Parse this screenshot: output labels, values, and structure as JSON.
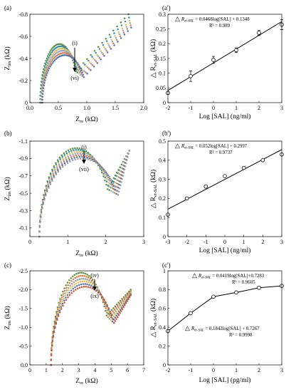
{
  "chart_data": [
    {
      "type": "scatter",
      "panel_label": "(a)",
      "xlabel_main": "Z",
      "xlabel_sub": "re",
      "xlabel_unit": " (kΩ)",
      "ylabel_main": "Z",
      "ylabel_sub": "im",
      "ylabel_unit": " (kΩ)",
      "xlim": [
        0,
        2.0
      ],
      "ylim": [
        0,
        -0.8
      ],
      "xticks": [
        "0.0",
        "0.5",
        "1.0",
        "1.5",
        "2.0"
      ],
      "yticks": [
        "0",
        "-0.2",
        "-0.4",
        "-0.6",
        "-0.8"
      ],
      "arrow_start": "(i)",
      "arrow_end": "(vi)",
      "colors": [
        "#5a8f3c",
        "#2e8fb0",
        "#e8c046",
        "#8aa7d4",
        "#e07b39",
        "#4a72b8"
      ],
      "series": [
        {
          "x0": 0.18,
          "rc": 0.86,
          "peak": -0.53,
          "tailx": 1.73,
          "taily": -0.8
        },
        {
          "x0": 0.19,
          "rc": 0.89,
          "peak": -0.51,
          "tailx": 1.74,
          "taily": -0.77
        },
        {
          "x0": 0.2,
          "rc": 0.92,
          "peak": -0.49,
          "tailx": 1.75,
          "taily": -0.74
        },
        {
          "x0": 0.2,
          "rc": 0.95,
          "peak": -0.47,
          "tailx": 1.76,
          "taily": -0.72
        },
        {
          "x0": 0.21,
          "rc": 0.98,
          "peak": -0.45,
          "tailx": 1.77,
          "taily": -0.7
        },
        {
          "x0": 0.22,
          "rc": 1.01,
          "peak": -0.43,
          "tailx": 1.78,
          "taily": -0.68
        }
      ]
    },
    {
      "type": "line",
      "panel_label": "(a')",
      "xlabel": "Log [SAL] (ng/ml)",
      "ylabel_main": "△ R",
      "ylabel_sub": "et-SAL",
      "ylabel_unit": " (kΩ)",
      "xlim": [
        -2,
        3
      ],
      "ylim": [
        0,
        0.3
      ],
      "xticks": [
        "-2",
        "-1",
        "0",
        "1",
        "2",
        "3"
      ],
      "yticks": [
        "0",
        "0.05",
        "0.1",
        "0.15",
        "0.2",
        "0.25",
        "0.3"
      ],
      "x": [
        -2,
        -1,
        0,
        1,
        2,
        3
      ],
      "y": [
        0.033,
        0.09,
        0.145,
        0.178,
        0.237,
        0.265
      ],
      "err": [
        0.005,
        0.018,
        0.012,
        0.008,
        0.008,
        0.017
      ],
      "fit": {
        "slope": 0.0468,
        "intercept": 0.1348
      },
      "equation_delta": "△",
      "equation_r": "R",
      "equation_sub": "et-SAL",
      "equation_rest": " = 0.0468log[SAL] + 0.1348",
      "r2": "R² = 0.989"
    },
    {
      "type": "scatter",
      "panel_label": "(b)",
      "xlabel_main": "Z",
      "xlabel_sub": "re",
      "xlabel_unit": " (kΩ)",
      "ylabel_main": "Z",
      "ylabel_sub": "im",
      "ylabel_unit": " (kΩ)",
      "xlim": [
        0,
        3
      ],
      "ylim": [
        0,
        -1.1
      ],
      "xticks": [
        "0",
        "1",
        "2",
        "3"
      ],
      "yticks": [
        "-0.1",
        "-0.3",
        "-0.5",
        "-0.7",
        "-0.9",
        "-1.1"
      ],
      "arrow_start": "(i)",
      "arrow_end": "(vii)",
      "colors": [
        "#5a8f3c",
        "#2e8fb0",
        "#e8c046",
        "#8aa7d4",
        "#e07b39",
        "#4a72b8",
        "#9b9b9b"
      ],
      "series": [
        {
          "x0": 0.25,
          "rc": 2.2,
          "peak": -1.02,
          "tailx": 2.62,
          "taily": -0.99
        },
        {
          "x0": 0.25,
          "rc": 2.25,
          "peak": -1.0,
          "tailx": 2.62,
          "taily": -0.99
        },
        {
          "x0": 0.25,
          "rc": 2.3,
          "peak": -0.98,
          "tailx": 2.62,
          "taily": -0.99
        },
        {
          "x0": 0.25,
          "rc": 2.35,
          "peak": -0.96,
          "tailx": 2.62,
          "taily": -0.99
        },
        {
          "x0": 0.25,
          "rc": 2.4,
          "peak": -0.94,
          "tailx": 2.62,
          "taily": -0.99
        },
        {
          "x0": 0.25,
          "rc": 2.45,
          "peak": -0.92,
          "tailx": 2.62,
          "taily": -0.99
        },
        {
          "x0": 0.25,
          "rc": 2.5,
          "peak": -0.9,
          "tailx": 2.62,
          "taily": -0.99
        }
      ]
    },
    {
      "type": "line",
      "panel_label": "(b')",
      "xlabel": "Log [SAL] (ng/ml)",
      "ylabel_main": "△ R",
      "ylabel_sub": "et-SAL",
      "ylabel_unit": " (kΩ)",
      "xlim": [
        -3,
        3
      ],
      "ylim": [
        0,
        0.5
      ],
      "xticks": [
        "-3",
        "-2",
        "-1",
        "0",
        "1",
        "2",
        "3"
      ],
      "yticks": [
        "0",
        "0.1",
        "0.2",
        "0.3",
        "0.4",
        "0.5"
      ],
      "x": [
        -3,
        -2,
        -1,
        0,
        1,
        2,
        3
      ],
      "y": [
        0.115,
        0.2,
        0.262,
        0.317,
        0.36,
        0.4,
        0.43
      ],
      "err": [
        0.004,
        0.004,
        0.007,
        0.005,
        0.005,
        0.004,
        0.006
      ],
      "fit": {
        "slope": 0.052,
        "intercept": 0.2997
      },
      "equation_delta": "△",
      "equation_r": "R",
      "equation_sub": "et-SAL",
      "equation_rest": " = 0.052log[SAL] + 0.2997",
      "r2": "R² = 0.9737"
    },
    {
      "type": "scatter",
      "panel_label": "(c)",
      "xlabel_main": "Z",
      "xlabel_sub": "re",
      "xlabel_unit": " (kΩ)",
      "ylabel_main": "Z",
      "ylabel_sub": "im",
      "ylabel_unit": " (kΩ)",
      "xlim": [
        0,
        7
      ],
      "ylim": [
        0,
        -2.5
      ],
      "xticks": [
        "0",
        "1",
        "2",
        "3",
        "4",
        "5",
        "6",
        "7"
      ],
      "yticks": [
        "0.0",
        "-0.5",
        "-1.0",
        "-1.5",
        "-2.0",
        "-2.5"
      ],
      "arrow_start": "(iv)",
      "arrow_end": "(ix)",
      "colors": [
        "#5a8f3c",
        "#e07b39",
        "#9b9b9b",
        "#e8c046",
        "#4a72b8",
        "#d04a2a"
      ],
      "series": [
        {
          "x0": 1.3,
          "rc": 5.0,
          "peak": -2.45,
          "tailx": 6.2,
          "taily": -2.0
        },
        {
          "x0": 1.3,
          "rc": 5.1,
          "peak": -2.37,
          "tailx": 6.2,
          "taily": -1.97
        },
        {
          "x0": 1.3,
          "rc": 5.2,
          "peak": -2.29,
          "tailx": 6.2,
          "taily": -1.94
        },
        {
          "x0": 1.3,
          "rc": 5.3,
          "peak": -2.22,
          "tailx": 6.2,
          "taily": -1.91
        },
        {
          "x0": 1.3,
          "rc": 5.4,
          "peak": -2.15,
          "tailx": 6.2,
          "taily": -1.88
        },
        {
          "x0": 1.3,
          "rc": 5.5,
          "peak": -2.08,
          "tailx": 6.2,
          "taily": -1.85
        }
      ]
    },
    {
      "type": "line",
      "panel_label": "(c')",
      "xlabel": "Log [SAL] (pg/ml)",
      "ylabel_main": "△ R",
      "ylabel_sub": "et-SAL",
      "ylabel_unit": " (kΩ)",
      "xlim": [
        -2,
        3
      ],
      "ylim": [
        0,
        1
      ],
      "xticks": [
        "-2",
        "-1",
        "0",
        "1",
        "2",
        "3"
      ],
      "yticks": [
        "0",
        "0.2",
        "0.4",
        "0.6",
        "0.8",
        "1"
      ],
      "x": [
        -2,
        -1,
        0,
        1,
        2,
        3
      ],
      "y": [
        0.36,
        0.55,
        0.725,
        0.77,
        0.82,
        0.84
      ],
      "err": [
        0.01,
        0.01,
        0.01,
        0.01,
        0.015,
        0.01
      ],
      "fits": [
        {
          "from": 0,
          "to": 3,
          "slope": 0.0419,
          "intercept": 0.7283
        },
        {
          "from": -2,
          "to": 0,
          "slope": 0.1842,
          "intercept": 0.7267
        }
      ],
      "equation_delta": "△",
      "equation_r": "R",
      "equation_sub": "et-SAL",
      "equation_rest": " = 0.0419log[SAL]+0.7283",
      "r2": "R² = 0.9605",
      "equation2_rest": " = 0.1842log[SAL] + 0.7267",
      "r2_2": "R² = 0.9998"
    }
  ]
}
